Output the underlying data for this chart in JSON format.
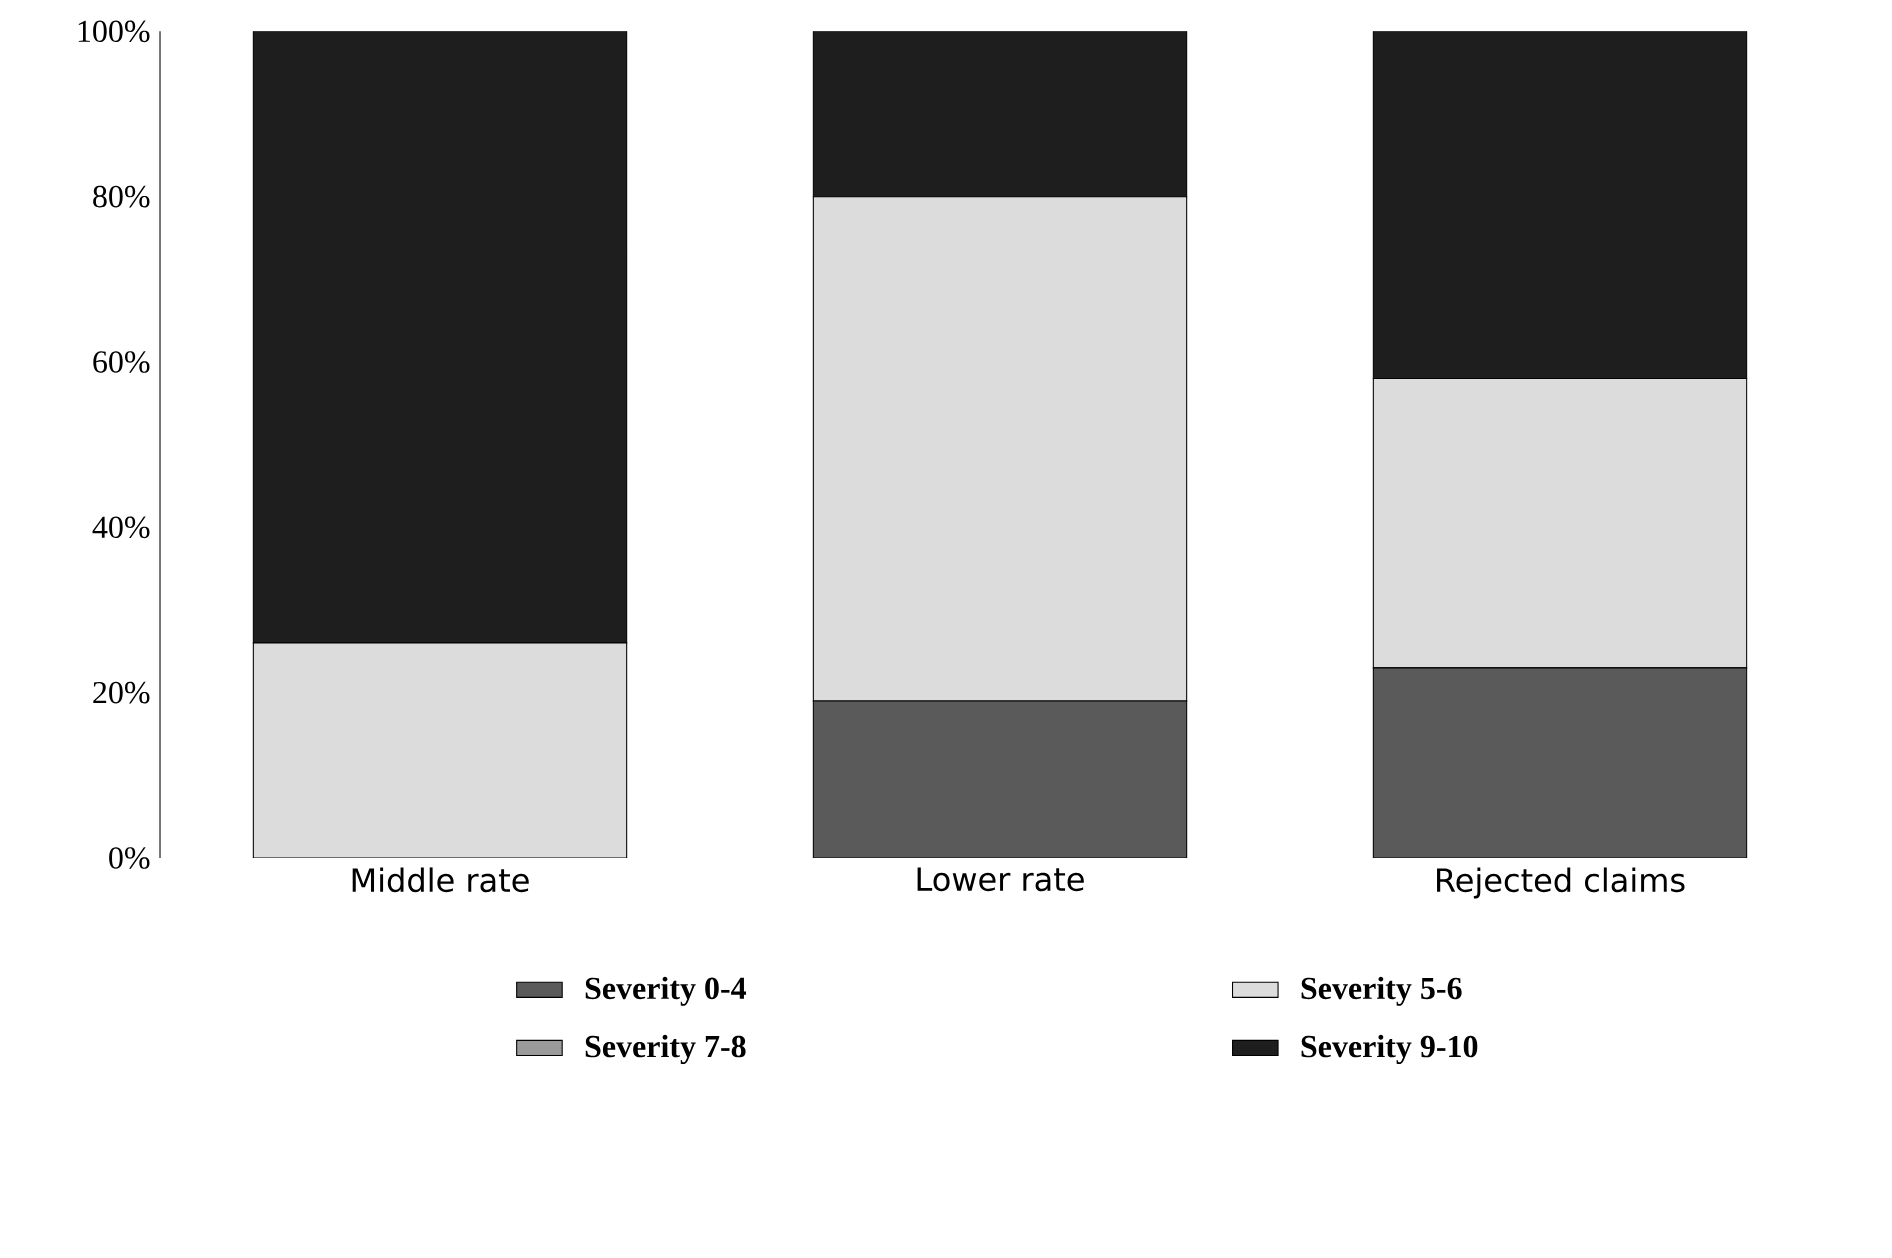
{
  "chart_data": {
    "type": "bar",
    "stacked": true,
    "categories": [
      "Middle rate",
      "Lower rate",
      "Rejected claims"
    ],
    "series": [
      {
        "name": "Severity 0-4",
        "color": "#5a5a5a",
        "values": [
          0,
          19,
          23
        ]
      },
      {
        "name": "Severity 5-6",
        "color": "#dcdcdc",
        "values": [
          26,
          61,
          35
        ]
      },
      {
        "name": "Severity 7-8",
        "color": "#9a9a9a",
        "values": [
          0,
          0,
          0
        ]
      },
      {
        "name": "Severity 9-10",
        "color": "#1e1e1e",
        "values": [
          74,
          20,
          42
        ]
      }
    ],
    "ylim": [
      0,
      100
    ],
    "yticks": [
      {
        "value": 0,
        "label": "0%"
      },
      {
        "value": 20,
        "label": "20%"
      },
      {
        "value": 40,
        "label": "40%"
      },
      {
        "value": 60,
        "label": "60%"
      },
      {
        "value": 80,
        "label": "80%"
      },
      {
        "value": 100,
        "label": "100%"
      }
    ],
    "grid": false,
    "legend": "bottom"
  }
}
